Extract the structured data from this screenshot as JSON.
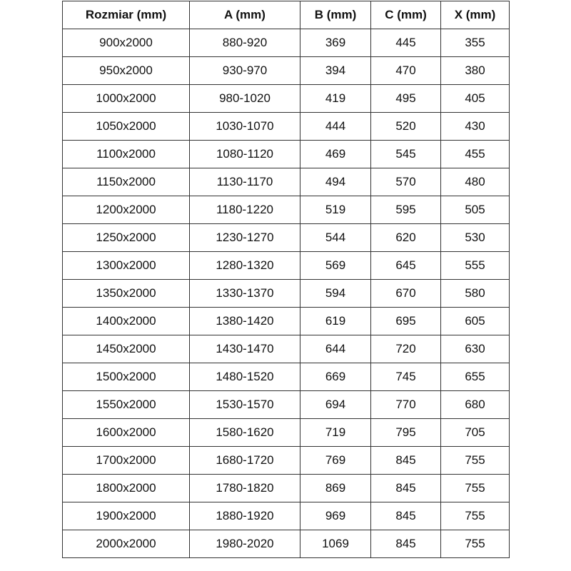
{
  "table": {
    "headers": [
      "Rozmiar (mm)",
      "A (mm)",
      "B (mm)",
      "C (mm)",
      "X (mm)"
    ],
    "rows": [
      [
        "900x2000",
        "880-920",
        "369",
        "445",
        "355"
      ],
      [
        "950x2000",
        "930-970",
        "394",
        "470",
        "380"
      ],
      [
        "1000x2000",
        "980-1020",
        "419",
        "495",
        "405"
      ],
      [
        "1050x2000",
        "1030-1070",
        "444",
        "520",
        "430"
      ],
      [
        "1100x2000",
        "1080-1120",
        "469",
        "545",
        "455"
      ],
      [
        "1150x2000",
        "1130-1170",
        "494",
        "570",
        "480"
      ],
      [
        "1200x2000",
        "1180-1220",
        "519",
        "595",
        "505"
      ],
      [
        "1250x2000",
        "1230-1270",
        "544",
        "620",
        "530"
      ],
      [
        "1300x2000",
        "1280-1320",
        "569",
        "645",
        "555"
      ],
      [
        "1350x2000",
        "1330-1370",
        "594",
        "670",
        "580"
      ],
      [
        "1400x2000",
        "1380-1420",
        "619",
        "695",
        "605"
      ],
      [
        "1450x2000",
        "1430-1470",
        "644",
        "720",
        "630"
      ],
      [
        "1500x2000",
        "1480-1520",
        "669",
        "745",
        "655"
      ],
      [
        "1550x2000",
        "1530-1570",
        "694",
        "770",
        "680"
      ],
      [
        "1600x2000",
        "1580-1620",
        "719",
        "795",
        "705"
      ],
      [
        "1700x2000",
        "1680-1720",
        "769",
        "845",
        "755"
      ],
      [
        "1800x2000",
        "1780-1820",
        "869",
        "845",
        "755"
      ],
      [
        "1900x2000",
        "1880-1920",
        "969",
        "845",
        "755"
      ],
      [
        "2000x2000",
        "1980-2020",
        "1069",
        "845",
        "755"
      ]
    ]
  }
}
